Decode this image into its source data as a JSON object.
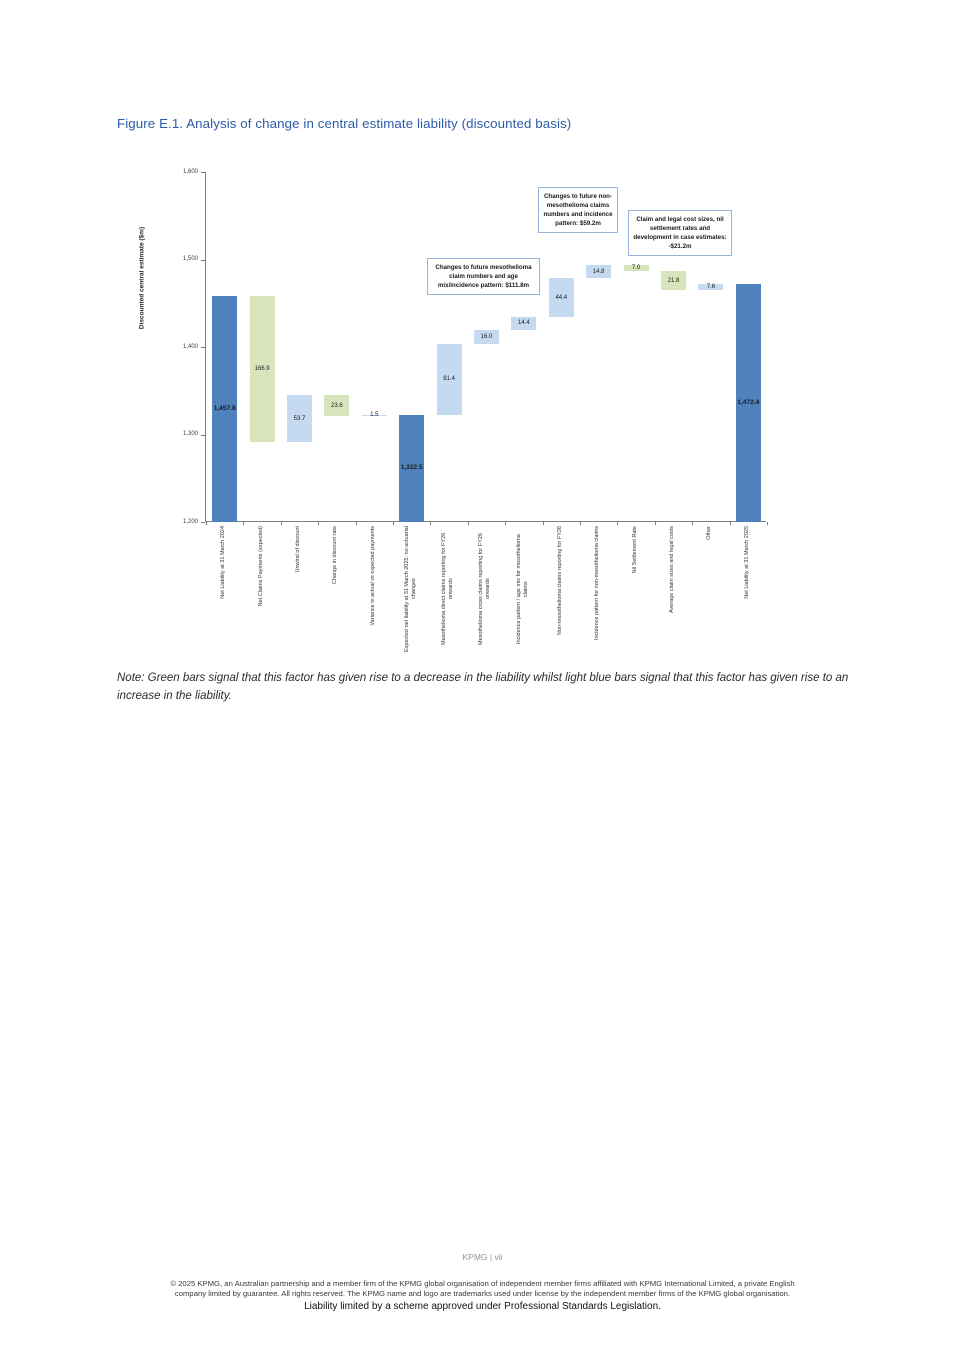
{
  "page": {
    "title": "Figure E.1. Analysis of change in central estimate liability (discounted basis)",
    "note": "Note: Green bars signal that this factor has given rise to a decrease in the liability whilst light blue bars signal that this factor has given rise to an increase in the liability.",
    "footer": {
      "page_label": "KPMG  |  vii",
      "copyright_line1": "© 2025 KPMG, an Australian partnership and a member firm of the KPMG global organisation of independent member firms affiliated with KPMG International Limited, a private English",
      "copyright_line2": "company limited by guarantee. All rights reserved. The KPMG name and logo are trademarks used under license by the independent member firms of the KPMG global organisation.",
      "liability_line": "Liability limited by a scheme approved under Professional Standards Legislation."
    }
  },
  "chart_data": {
    "type": "bar",
    "subtype": "waterfall",
    "title": "",
    "xlabel": "",
    "ylabel": "Discounted central estimate ($m)",
    "ylim": [
      1200,
      1600
    ],
    "yticks": [
      1200,
      1300,
      1400,
      1500,
      1600
    ],
    "ytick_labels": [
      "1,200",
      "1,300",
      "1,400",
      "1,500",
      "1,600"
    ],
    "grid": false,
    "legend": false,
    "colors": {
      "total": "#4F81BD",
      "increase": "#C5D9F1",
      "decrease": "#D7E4BC",
      "axis": "#7f7f7f"
    },
    "bars": [
      {
        "label": "Net Liability at 31 March 2024",
        "type": "total",
        "value": 1457.8,
        "value_label": "1,457.8"
      },
      {
        "label": "Net Claims Payments (expected)",
        "type": "decrease",
        "value": 166.9,
        "value_label": "166.9"
      },
      {
        "label": "Unwind of discount",
        "type": "increase",
        "value": 53.7,
        "value_label": "53.7"
      },
      {
        "label": "Change in discount rate",
        "type": "decrease",
        "value": 23.6,
        "value_label": "23.6"
      },
      {
        "label": "Variance in actual vs expected payments",
        "type": "increase",
        "value": 1.5,
        "value_label": "1.5"
      },
      {
        "label": "Expected net liability at 31 March 2025: no actuarial changes",
        "type": "total",
        "value": 1322.5,
        "value_label": "1,322.5"
      },
      {
        "label": "Mesothelioma direct claims reporting for FY26 onwards",
        "type": "increase",
        "value": 81.4,
        "value_label": "81.4"
      },
      {
        "label": "Mesothelioma cross claims reporting for FY26 onwards",
        "type": "increase",
        "value": 16.0,
        "value_label": "16.0"
      },
      {
        "label": "Incidence pattern / age mix for mesothelioma claims",
        "type": "increase",
        "value": 14.4,
        "value_label": "14.4"
      },
      {
        "label": "Non-mesothelioma claims reporting for FY26",
        "type": "increase",
        "value": 44.4,
        "value_label": "44.4"
      },
      {
        "label": "Incidence pattern for non-mesothelioma claims",
        "type": "increase",
        "value": 14.8,
        "value_label": "14.8"
      },
      {
        "label": "Nil Settlement Rate",
        "type": "decrease",
        "value": 7.0,
        "value_label": "7.0"
      },
      {
        "label": "Average claim sizes and legal costs",
        "type": "decrease",
        "value": 21.8,
        "value_label": "21.8"
      },
      {
        "label": "Other",
        "type": "increase",
        "value": 7.6,
        "value_label": "7.6"
      },
      {
        "label": "Net Liability at 31 March 2025",
        "type": "total",
        "value": 1472.4,
        "value_label": "1,472.4"
      }
    ],
    "annotations": [
      {
        "text": "Changes to future mesothelioma claim numbers and age mix/incidence pattern: $111.8m"
      },
      {
        "text": "Changes to future non-mesothelioma claims numbers and incidence pattern: $59.2m"
      },
      {
        "text": "Claim and legal cost sizes, nil settlement rates and development in case estimates: -$21.2m"
      }
    ]
  }
}
